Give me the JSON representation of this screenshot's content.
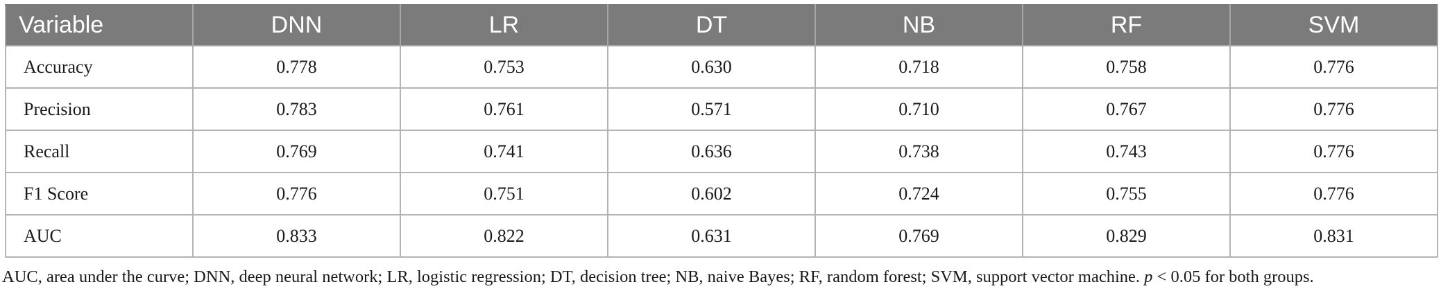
{
  "table": {
    "headers": [
      "Variable",
      "DNN",
      "LR",
      "DT",
      "NB",
      "RF",
      "SVM"
    ],
    "rows": [
      {
        "label": "Accuracy",
        "values": [
          "0.778",
          "0.753",
          "0.630",
          "0.718",
          "0.758",
          "0.776"
        ]
      },
      {
        "label": "Precision",
        "values": [
          "0.783",
          "0.761",
          "0.571",
          "0.710",
          "0.767",
          "0.776"
        ]
      },
      {
        "label": "Recall",
        "values": [
          "0.769",
          "0.741",
          "0.636",
          "0.738",
          "0.743",
          "0.776"
        ]
      },
      {
        "label": "F1 Score",
        "values": [
          "0.776",
          "0.751",
          "0.602",
          "0.724",
          "0.755",
          "0.776"
        ]
      },
      {
        "label": "AUC",
        "values": [
          "0.833",
          "0.822",
          "0.631",
          "0.769",
          "0.829",
          "0.831"
        ]
      }
    ]
  },
  "footnote": {
    "text": "AUC, area under the curve; DNN, deep neural network; LR, logistic regression; DT, decision tree; NB, naive Bayes; RF, random forest; SVM, support vector machine.",
    "p_symbol": "p",
    "p_text": "< 0.05 for both groups."
  }
}
